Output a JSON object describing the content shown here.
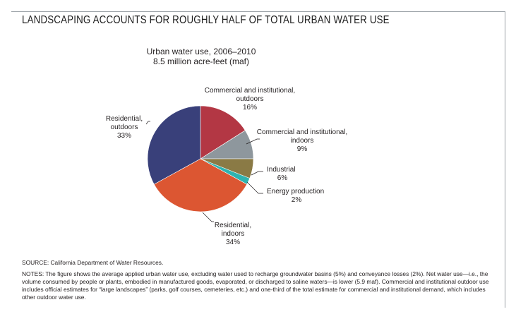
{
  "figure": {
    "title": "LANDSCAPING ACCOUNTS FOR ROUGHLY HALF OF TOTAL URBAN WATER USE",
    "source": "SOURCE: California Department of Water Resources.",
    "notes": "NOTES: The figure shows the average applied urban water use, excluding water used to recharge groundwater basins (5%) and conveyance losses (2%). Net water use—i.e., the volume consumed by people or plants, embodied in manufactured goods, evaporated, or discharged to saline waters—is lower (5.9 maf). Commercial and institutional outdoor use includes official estimates for “large landscapes” (parks, golf courses, cemeteries, etc.) and one-third of the total estimate for commercial and institutional demand, which includes other outdoor water use."
  },
  "chart_data": {
    "type": "pie",
    "title": "Urban water use, 2006–2010",
    "subtitle": "8.5 million acre-feet (maf)",
    "unit": "%",
    "start": "12 o'clock, clockwise",
    "slices": [
      {
        "name": "Commercial and institutional, outdoors",
        "value": 16,
        "value_label": "16%",
        "color": "#b33744",
        "label_lines": [
          "Commercial and institutional,",
          "outdoors",
          "16%"
        ]
      },
      {
        "name": "Commercial and institutional, indoors",
        "value": 9,
        "value_label": "9%",
        "color": "#8e979d",
        "label_lines": [
          "Commercial and institutional,",
          "indoors",
          "9%"
        ]
      },
      {
        "name": "Industrial",
        "value": 6,
        "value_label": "6%",
        "color": "#8a7a45",
        "label_lines": [
          "Industrial",
          "6%"
        ]
      },
      {
        "name": "Energy production",
        "value": 2,
        "value_label": "2%",
        "color": "#2fb3b0",
        "label_lines": [
          "Energy production",
          "2%"
        ]
      },
      {
        "name": "Residential, indoors",
        "value": 34,
        "value_label": "34%",
        "color": "#dc5632",
        "label_lines": [
          "Residential,",
          "indoors",
          "34%"
        ]
      },
      {
        "name": "Residential, outdoors",
        "value": 33,
        "value_label": "33%",
        "color": "#39407a",
        "label_lines": [
          "Residential,",
          "outdoors",
          "33%"
        ]
      }
    ]
  }
}
